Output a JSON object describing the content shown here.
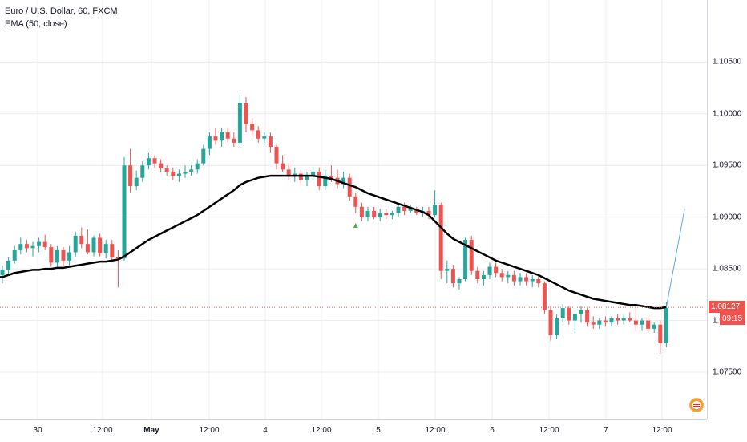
{
  "legend": {
    "title": "Euro / U.S. Dollar, 60, FXCM",
    "indicator": "EMA (50, close)"
  },
  "colors": {
    "up": "#26a69a",
    "down": "#ef5350",
    "ema": "#000000",
    "grid": "#e9ecf2",
    "last_price_line": "#ef5350",
    "projection": "#5aa9e6"
  },
  "price_axis": {
    "ticks": [
      "1.10500",
      "1.10000",
      "1.09500",
      "1.09000",
      "1.08500",
      "1.08000",
      "1.07500"
    ],
    "last_price": "1.08127",
    "countdown": "09:15"
  },
  "time_axis": {
    "labels": [
      {
        "text": "30",
        "bold": false
      },
      {
        "text": "12:00",
        "bold": false
      },
      {
        "text": "May",
        "bold": true
      },
      {
        "text": "12:00",
        "bold": false
      },
      {
        "text": "4",
        "bold": false
      },
      {
        "text": "12:00",
        "bold": false
      },
      {
        "text": "5",
        "bold": false
      },
      {
        "text": "12:00",
        "bold": false
      },
      {
        "text": "6",
        "bold": false
      },
      {
        "text": "12:00",
        "bold": false
      },
      {
        "text": "7",
        "bold": false
      },
      {
        "text": "12:00",
        "bold": false
      }
    ]
  },
  "chart_data": {
    "type": "candlestick",
    "title": "Euro / U.S. Dollar, 60, FXCM",
    "symbol": "EURUSD",
    "interval": "60",
    "ylim": [
      1.0705,
      1.111
    ],
    "grid": true,
    "last_price": 1.08127,
    "candles": [
      [
        1.0844,
        1.0853,
        1.0836,
        1.0849
      ],
      [
        1.0849,
        1.0861,
        1.0845,
        1.0858
      ],
      [
        1.0858,
        1.0872,
        1.0855,
        1.0868
      ],
      [
        1.0868,
        1.088,
        1.0864,
        1.0874
      ],
      [
        1.0874,
        1.0878,
        1.0866,
        1.087
      ],
      [
        1.087,
        1.0876,
        1.0862,
        1.0872
      ],
      [
        1.0872,
        1.088,
        1.0866,
        1.0876
      ],
      [
        1.0876,
        1.0883,
        1.0868,
        1.0871
      ],
      [
        1.0871,
        1.0874,
        1.0852,
        1.0856
      ],
      [
        1.0856,
        1.0872,
        1.0852,
        1.0868
      ],
      [
        1.0868,
        1.0871,
        1.0853,
        1.0858
      ],
      [
        1.0858,
        1.0872,
        1.0853,
        1.0866
      ],
      [
        1.0866,
        1.0886,
        1.0862,
        1.0882
      ],
      [
        1.0882,
        1.089,
        1.087,
        1.0874
      ],
      [
        1.0874,
        1.0888,
        1.0864,
        1.0866
      ],
      [
        1.0866,
        1.0882,
        1.0862,
        1.088
      ],
      [
        1.088,
        1.0884,
        1.0862,
        1.0865
      ],
      [
        1.0865,
        1.0878,
        1.086,
        1.0874
      ],
      [
        1.0874,
        1.0878,
        1.0858,
        1.0861
      ],
      [
        1.0861,
        1.0868,
        1.0832,
        1.086
      ],
      [
        1.086,
        1.0958,
        1.0858,
        1.095
      ],
      [
        1.095,
        1.0966,
        1.0924,
        1.093
      ],
      [
        1.093,
        1.0945,
        1.0926,
        1.0938
      ],
      [
        1.0938,
        1.0954,
        1.0934,
        1.095
      ],
      [
        1.095,
        1.0962,
        1.0946,
        1.0957
      ],
      [
        1.0957,
        1.096,
        1.0948,
        1.0952
      ],
      [
        1.0952,
        1.0956,
        1.0944,
        1.0947
      ],
      [
        1.0947,
        1.095,
        1.094,
        1.0944
      ],
      [
        1.0944,
        1.0948,
        1.0936,
        1.094
      ],
      [
        1.094,
        1.0946,
        1.0934,
        1.0942
      ],
      [
        1.0942,
        1.095,
        1.0938,
        1.0944
      ],
      [
        1.0944,
        1.095,
        1.094,
        1.0946
      ],
      [
        1.0946,
        1.0956,
        1.0942,
        1.0952
      ],
      [
        1.0952,
        1.097,
        1.095,
        1.0966
      ],
      [
        1.0966,
        1.0982,
        1.096,
        1.0978
      ],
      [
        1.0978,
        1.0986,
        1.097,
        1.0974
      ],
      [
        1.0974,
        1.0986,
        1.0968,
        1.0982
      ],
      [
        1.0982,
        1.0986,
        1.0972,
        1.0976
      ],
      [
        1.0976,
        1.0982,
        1.0968,
        1.0972
      ],
      [
        1.0972,
        1.1018,
        1.0968,
        1.101
      ],
      [
        1.101,
        1.1016,
        1.0982,
        1.099
      ],
      [
        1.099,
        1.0996,
        1.0978,
        1.0984
      ],
      [
        1.0984,
        1.0988,
        1.0972,
        1.0976
      ],
      [
        1.0976,
        1.0982,
        1.0972,
        1.0978
      ],
      [
        1.0978,
        1.0982,
        1.0962,
        1.0968
      ],
      [
        1.0968,
        1.097,
        1.0946,
        1.0952
      ],
      [
        1.0952,
        1.096,
        1.0944,
        1.0946
      ],
      [
        1.0946,
        1.0952,
        1.0936,
        1.094
      ],
      [
        1.094,
        1.0948,
        1.0934,
        1.0942
      ],
      [
        1.0942,
        1.0946,
        1.093,
        1.0936
      ],
      [
        1.0936,
        1.0944,
        1.093,
        1.094
      ],
      [
        1.094,
        1.0948,
        1.0936,
        1.0944
      ],
      [
        1.0944,
        1.0948,
        1.0926,
        1.093
      ],
      [
        1.093,
        1.0946,
        1.0926,
        1.094
      ],
      [
        1.094,
        1.095,
        1.0934,
        1.0938
      ],
      [
        1.0938,
        1.0946,
        1.0928,
        1.0932
      ],
      [
        1.0932,
        1.0944,
        1.0928,
        1.0938
      ],
      [
        1.0938,
        1.0942,
        1.0916,
        1.092
      ],
      [
        1.092,
        1.0924,
        1.0904,
        1.091
      ],
      [
        1.091,
        1.0914,
        1.0896,
        1.09
      ],
      [
        1.09,
        1.091,
        1.0896,
        1.0906
      ],
      [
        1.0906,
        1.091,
        1.0898,
        1.09
      ],
      [
        1.09,
        1.0908,
        1.0896,
        1.0904
      ],
      [
        1.0904,
        1.0908,
        1.0898,
        1.0902
      ],
      [
        1.0902,
        1.0906,
        1.0898,
        1.0904
      ],
      [
        1.0904,
        1.0914,
        1.09,
        1.091
      ],
      [
        1.091,
        1.0914,
        1.0902,
        1.0906
      ],
      [
        1.0906,
        1.0912,
        1.0904,
        1.0908
      ],
      [
        1.0908,
        1.091,
        1.0902,
        1.0904
      ],
      [
        1.0904,
        1.091,
        1.09,
        1.0906
      ],
      [
        1.0906,
        1.091,
        1.0898,
        1.0902
      ],
      [
        1.0902,
        1.0926,
        1.09,
        1.0912
      ],
      [
        1.0912,
        1.0914,
        1.084,
        1.0848
      ],
      [
        1.0848,
        1.0858,
        1.0836,
        1.085
      ],
      [
        1.085,
        1.0854,
        1.0832,
        1.0836
      ],
      [
        1.0836,
        1.0842,
        1.083,
        1.084
      ],
      [
        1.084,
        1.088,
        1.0838,
        1.0878
      ],
      [
        1.0878,
        1.0882,
        1.0844,
        1.0848
      ],
      [
        1.0848,
        1.0852,
        1.0836,
        1.084
      ],
      [
        1.084,
        1.0848,
        1.0834,
        1.0844
      ],
      [
        1.0844,
        1.0856,
        1.084,
        1.0852
      ],
      [
        1.0852,
        1.0856,
        1.0842,
        1.0846
      ],
      [
        1.0846,
        1.085,
        1.0838,
        1.0842
      ],
      [
        1.0842,
        1.0848,
        1.0836,
        1.0844
      ],
      [
        1.0844,
        1.0848,
        1.0834,
        1.0838
      ],
      [
        1.0838,
        1.0846,
        1.0834,
        1.0842
      ],
      [
        1.0842,
        1.0846,
        1.0834,
        1.0838
      ],
      [
        1.0838,
        1.0844,
        1.0832,
        1.084
      ],
      [
        1.084,
        1.0844,
        1.0832,
        1.0836
      ],
      [
        1.0836,
        1.0838,
        1.0806,
        1.081
      ],
      [
        1.081,
        1.0814,
        1.078,
        1.0786
      ],
      [
        1.0786,
        1.0806,
        1.0782,
        1.0802
      ],
      [
        1.0802,
        1.0816,
        1.0798,
        1.0812
      ],
      [
        1.0812,
        1.0814,
        1.0796,
        1.08
      ],
      [
        1.08,
        1.081,
        1.0788,
        1.0806
      ],
      [
        1.0806,
        1.0814,
        1.0798,
        1.081
      ],
      [
        1.081,
        1.0812,
        1.0794,
        1.0798
      ],
      [
        1.0798,
        1.0804,
        1.0792,
        1.0796
      ],
      [
        1.0796,
        1.0802,
        1.0792,
        1.08
      ],
      [
        1.08,
        1.0804,
        1.0794,
        1.0798
      ],
      [
        1.0798,
        1.0804,
        1.0794,
        1.0802
      ],
      [
        1.0802,
        1.0806,
        1.0796,
        1.08
      ],
      [
        1.08,
        1.0806,
        1.0796,
        1.0802
      ],
      [
        1.0802,
        1.0808,
        1.0798,
        1.08
      ],
      [
        1.08,
        1.0812,
        1.079,
        1.0796
      ],
      [
        1.0796,
        1.0802,
        1.079,
        1.08
      ],
      [
        1.08,
        1.0804,
        1.0788,
        1.0792
      ],
      [
        1.0792,
        1.0798,
        1.0788,
        1.0796
      ],
      [
        1.0796,
        1.08,
        1.0768,
        1.0778
      ],
      [
        1.0778,
        1.0818,
        1.0774,
        1.0812
      ]
    ],
    "ema": {
      "name": "EMA (50, close)",
      "values": [
        1.0842,
        1.0844,
        1.0846,
        1.0847,
        1.0848,
        1.0849,
        1.0849,
        1.085,
        1.085,
        1.0851,
        1.0851,
        1.0852,
        1.0853,
        1.0854,
        1.0855,
        1.0856,
        1.0857,
        1.0857,
        1.0858,
        1.0859,
        1.0862,
        1.0866,
        1.087,
        1.0874,
        1.0878,
        1.0881,
        1.0884,
        1.0887,
        1.089,
        1.0893,
        1.0896,
        1.0899,
        1.0902,
        1.0906,
        1.091,
        1.0914,
        1.0918,
        1.0922,
        1.0926,
        1.0931,
        1.0934,
        1.0936,
        1.0938,
        1.0939,
        1.094,
        1.094,
        1.094,
        1.094,
        1.094,
        1.094,
        1.094,
        1.094,
        1.0939,
        1.0938,
        1.0937,
        1.0935,
        1.0933,
        1.0931,
        1.0929,
        1.0926,
        1.0923,
        1.0921,
        1.0919,
        1.0917,
        1.0915,
        1.0913,
        1.0911,
        1.0909,
        1.0907,
        1.0905,
        1.0902,
        1.0896,
        1.089,
        1.0884,
        1.0879,
        1.0876,
        1.0873,
        1.087,
        1.0867,
        1.0864,
        1.0861,
        1.0858,
        1.0856,
        1.0854,
        1.0852,
        1.085,
        1.0848,
        1.0846,
        1.0844,
        1.0841,
        1.0838,
        1.0835,
        1.0832,
        1.0829,
        1.0827,
        1.0825,
        1.0823,
        1.0821,
        1.082,
        1.0819,
        1.0818,
        1.0817,
        1.0816,
        1.0815,
        1.0815,
        1.0814,
        1.0813,
        1.0812,
        1.0812,
        1.0813
      ]
    },
    "markers": [
      {
        "type": "triangle-up",
        "candle_index": 58,
        "price": 1.0892
      }
    ],
    "projection_line": {
      "from": {
        "candle_index": 109,
        "price": 1.0813
      },
      "to": {
        "candle_index": 112,
        "price": 1.0908
      }
    }
  }
}
